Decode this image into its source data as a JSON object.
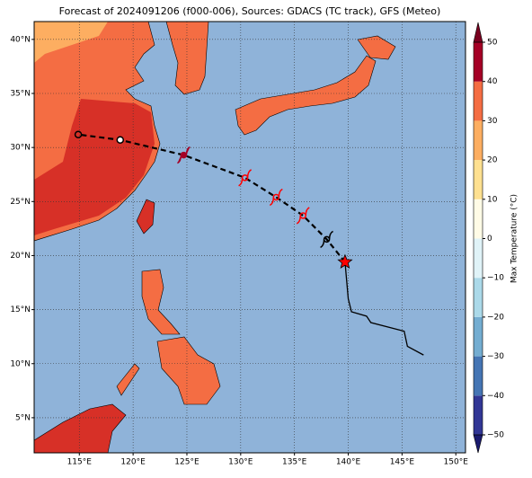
{
  "chart_data": {
    "type": "map",
    "title": "Forecast of 2024091206 (f000-006), Sources: GDACS (TC track), GFS (Meteo)",
    "xlim": [
      110.8,
      150.9
    ],
    "ylim": [
      1.75,
      41.65
    ],
    "xticks": [
      {
        "value": 115,
        "label": "115°E"
      },
      {
        "value": 120,
        "label": "120°E"
      },
      {
        "value": 125,
        "label": "125°E"
      },
      {
        "value": 130,
        "label": "130°E"
      },
      {
        "value": 135,
        "label": "135°E"
      },
      {
        "value": 140,
        "label": "140°E"
      },
      {
        "value": 145,
        "label": "145°E"
      },
      {
        "value": 150,
        "label": "150°E"
      }
    ],
    "yticks": [
      {
        "value": 5,
        "label": "5°N"
      },
      {
        "value": 10,
        "label": "10°N"
      },
      {
        "value": 15,
        "label": "15°N"
      },
      {
        "value": 20,
        "label": "20°N"
      },
      {
        "value": 25,
        "label": "25°N"
      },
      {
        "value": 30,
        "label": "30°N"
      },
      {
        "value": 35,
        "label": "35°N"
      },
      {
        "value": 40,
        "label": "40°N"
      }
    ],
    "grid": true,
    "ocean_color": "#8fb3d9",
    "colorbar": {
      "label": "Max Temperature (°C)",
      "lim": [
        -50,
        50
      ],
      "ticks": [
        {
          "value": -50,
          "label": "−50"
        },
        {
          "value": -40,
          "label": "−40"
        },
        {
          "value": -30,
          "label": "−30"
        },
        {
          "value": -20,
          "label": "−20"
        },
        {
          "value": -10,
          "label": "−10"
        },
        0,
        10,
        20,
        30,
        40,
        50
      ],
      "colors": [
        "#313695",
        "#4575b4",
        "#74add1",
        "#abd9e9",
        "#e0f3f8",
        "#fffbe6",
        "#fee090",
        "#fdae61",
        "#f46d43",
        "#a50026"
      ],
      "under_color": "#1a1a6e",
      "over_color": "#7a0020"
    },
    "observed_track": {
      "color": "#000000",
      "lon": [
        147,
        145.5,
        145.2,
        142.1,
        141.7,
        140.3,
        140,
        139.7
      ],
      "lat": [
        10.8,
        11.6,
        13.0,
        13.8,
        14.4,
        14.8,
        16.0,
        19.4
      ]
    },
    "forecast_track": {
      "color": "#000000",
      "lon": [
        139.7,
        138,
        135.8,
        133.3,
        130.4,
        124.7,
        118.8,
        114.9
      ],
      "lat": [
        19.4,
        21.5,
        23.7,
        25.4,
        27.2,
        29.3,
        30.7,
        31.2
      ],
      "symbol_colors": [
        "#ff0000",
        "#000000",
        "#ff0000",
        "#ff0000",
        "#ff0000",
        "#a50026",
        "#000000",
        "#000000"
      ]
    }
  }
}
